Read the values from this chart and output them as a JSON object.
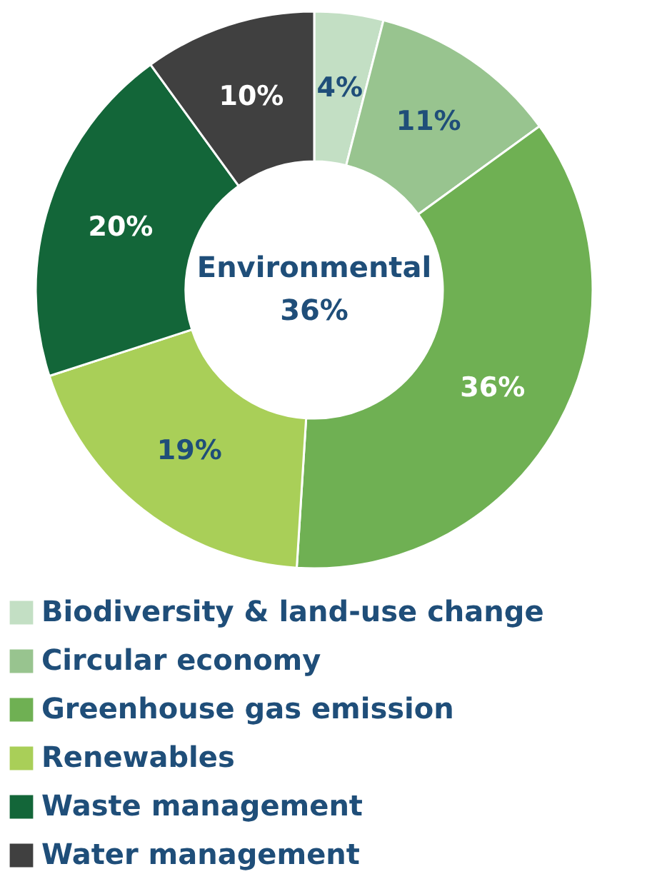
{
  "chart_data": {
    "type": "donut",
    "categories": [
      "Biodiversity & land-use change",
      "Circular economy",
      "Greenhouse gas emission",
      "Renewables",
      "Waste management",
      "Water management"
    ],
    "values": [
      4,
      11,
      36,
      19,
      20,
      10
    ],
    "value_labels": [
      "4%",
      "11%",
      "36%",
      "19%",
      "20%",
      "10%"
    ],
    "colors": [
      "#c3dfc4",
      "#98c48f",
      "#6fb053",
      "#a9cf58",
      "#136639",
      "#404040"
    ],
    "annotations": [
      "Environmental",
      "36%"
    ],
    "legend": "bottom"
  }
}
